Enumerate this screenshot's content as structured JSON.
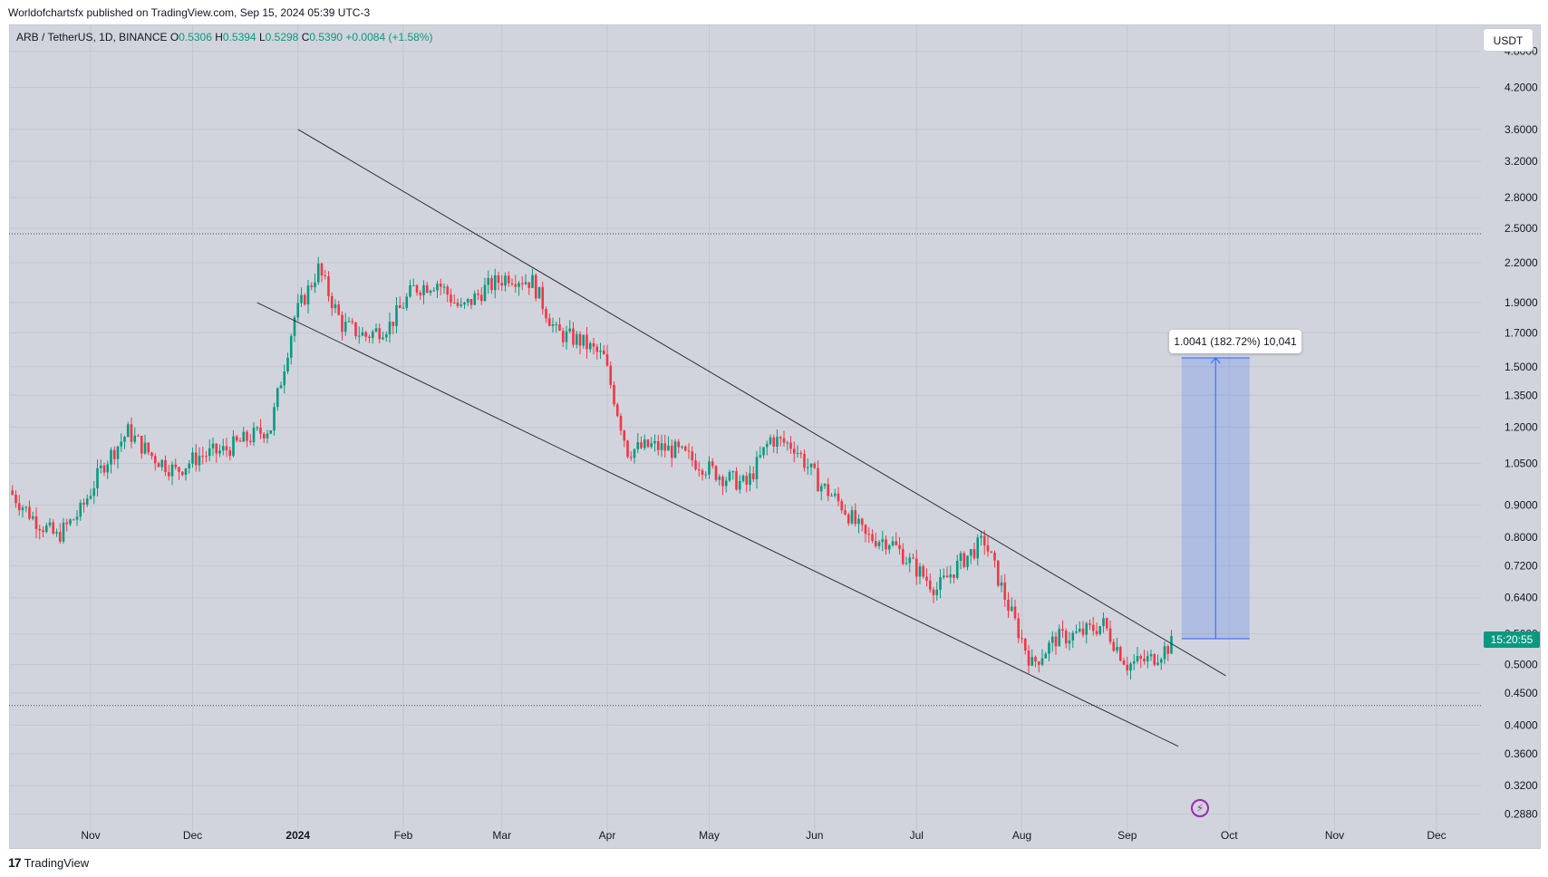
{
  "header": {
    "publish_line": "Worldofchartsfx published on TradingView.com, Sep 15, 2024 05:39 UTC-3"
  },
  "legend": {
    "symbol": "ARB / TetherUS, 1D, BINANCE",
    "o_label": "O",
    "o": "0.5306",
    "h_label": "H",
    "h": "0.5394",
    "l_label": "L",
    "l": "0.5298",
    "c_label": "C",
    "c": "0.5390",
    "change": "+0.0084 (+1.58%)"
  },
  "price_axis": {
    "currency": "USDT",
    "countdown": "15:20:55"
  },
  "measure": {
    "label": "1.0041 (182.72%) 10,041"
  },
  "footer": {
    "logo_mark": "17",
    "brand": "TradingView"
  },
  "colors": {
    "up": "#089981",
    "down": "#f23645",
    "background": "#d1d4dc",
    "trendline": "#2a2e39",
    "measure": "#2962ff"
  },
  "icons": {
    "flash": "lightning-icon",
    "logo": "tradingview-logo-icon"
  },
  "chart_data": {
    "type": "candlestick",
    "symbol": "ARB/USDT",
    "timeframe": "1D",
    "scale": "log",
    "ylim": [
      0.27,
      5.3
    ],
    "x_tick_labels": [
      "Nov",
      "Dec",
      "2024",
      "Feb",
      "Mar",
      "Apr",
      "May",
      "Jun",
      "Jul",
      "Aug",
      "Sep",
      "Oct",
      "Nov",
      "Dec"
    ],
    "x_tick_dates": [
      "2023-11-01",
      "2023-12-01",
      "2024-01-01",
      "2024-02-01",
      "2024-03-01",
      "2024-04-01",
      "2024-05-01",
      "2024-06-01",
      "2024-07-01",
      "2024-08-01",
      "2024-09-01",
      "2024-10-01",
      "2024-11-01",
      "2024-12-01"
    ],
    "y_tick_labels": [
      "4.8000",
      "4.2000",
      "3.6000",
      "3.2000",
      "2.8000",
      "2.5000",
      "2.2000",
      "1.9000",
      "1.7000",
      "1.5000",
      "1.3500",
      "1.2000",
      "1.0500",
      "0.9000",
      "0.8000",
      "0.7200",
      "0.6400",
      "0.5600",
      "0.5000",
      "0.4500",
      "0.4000",
      "0.3600",
      "0.3200",
      "0.2880"
    ],
    "close_series": [
      [
        "2023-10-08",
        0.95
      ],
      [
        "2023-10-15",
        0.86
      ],
      [
        "2023-10-22",
        0.8
      ],
      [
        "2023-10-29",
        0.88
      ],
      [
        "2023-11-05",
        1.05
      ],
      [
        "2023-11-12",
        1.18
      ],
      [
        "2023-11-19",
        1.08
      ],
      [
        "2023-11-26",
        1.02
      ],
      [
        "2023-12-03",
        1.08
      ],
      [
        "2023-12-10",
        1.1
      ],
      [
        "2023-12-17",
        1.15
      ],
      [
        "2023-12-24",
        1.2
      ],
      [
        "2023-12-31",
        1.8
      ],
      [
        "2024-01-07",
        2.15
      ],
      [
        "2024-01-14",
        1.75
      ],
      [
        "2024-01-21",
        1.68
      ],
      [
        "2024-01-28",
        1.75
      ],
      [
        "2024-02-04",
        2.0
      ],
      [
        "2024-02-11",
        2.05
      ],
      [
        "2024-02-18",
        1.85
      ],
      [
        "2024-02-25",
        2.0
      ],
      [
        "2024-03-03",
        2.1
      ],
      [
        "2024-03-10",
        2.05
      ],
      [
        "2024-03-17",
        1.7
      ],
      [
        "2024-03-24",
        1.65
      ],
      [
        "2024-03-31",
        1.55
      ],
      [
        "2024-04-07",
        1.1
      ],
      [
        "2024-04-14",
        1.12
      ],
      [
        "2024-04-21",
        1.1
      ],
      [
        "2024-04-28",
        1.05
      ],
      [
        "2024-05-05",
        1.0
      ],
      [
        "2024-05-12",
        0.97
      ],
      [
        "2024-05-19",
        1.15
      ],
      [
        "2024-05-26",
        1.12
      ],
      [
        "2024-06-02",
        0.98
      ],
      [
        "2024-06-09",
        0.9
      ],
      [
        "2024-06-16",
        0.8
      ],
      [
        "2024-06-23",
        0.79
      ],
      [
        "2024-06-30",
        0.72
      ],
      [
        "2024-07-07",
        0.66
      ],
      [
        "2024-07-14",
        0.73
      ],
      [
        "2024-07-21",
        0.79
      ],
      [
        "2024-07-28",
        0.62
      ],
      [
        "2024-08-04",
        0.5
      ],
      [
        "2024-08-11",
        0.55
      ],
      [
        "2024-08-18",
        0.56
      ],
      [
        "2024-08-25",
        0.58
      ],
      [
        "2024-09-01",
        0.5
      ],
      [
        "2024-09-08",
        0.51
      ],
      [
        "2024-09-14",
        0.539
      ]
    ],
    "trendlines": [
      {
        "name": "upper",
        "points": [
          [
            "2024-01-01",
            3.6
          ],
          [
            "2024-09-30",
            0.48
          ]
        ]
      },
      {
        "name": "lower",
        "points": [
          [
            "2023-12-20",
            1.9
          ],
          [
            "2024-09-16",
            0.37
          ]
        ]
      }
    ],
    "horizontal_levels": [
      2.45,
      0.43
    ],
    "measure_projection": {
      "from_date": "2024-09-17",
      "to_date": "2024-10-07",
      "from_price": 0.55,
      "to_price": 1.55
    }
  }
}
